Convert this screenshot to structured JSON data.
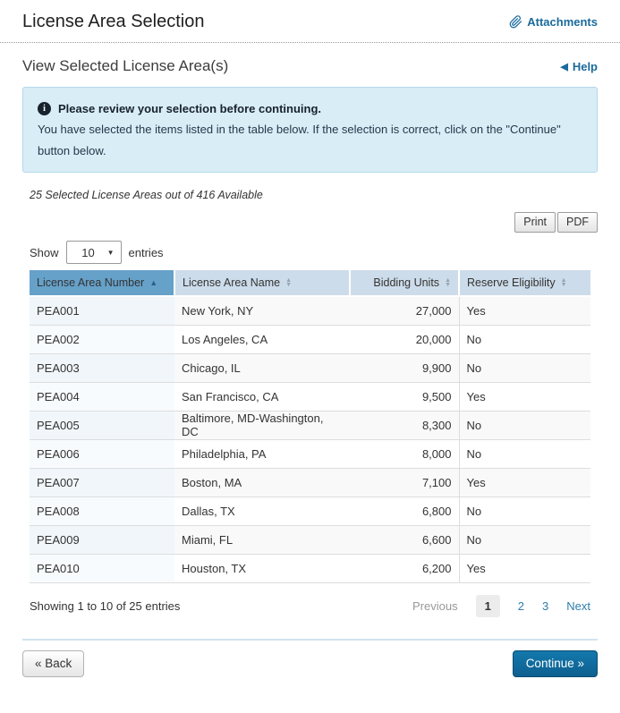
{
  "header": {
    "title": "License Area Selection",
    "attachments_label": "Attachments"
  },
  "subheader": {
    "title": "View Selected License Area(s)",
    "help_label": "Help",
    "help_icon": "◀"
  },
  "notice": {
    "title": "Please review your selection before continuing.",
    "body": "You have selected the items listed in the table below. If the selection is correct, click on the \"Continue\" button below.",
    "info_icon_glyph": "i"
  },
  "summary": "25 Selected License Areas out of 416 Available",
  "toolbar": {
    "print_label": "Print",
    "pdf_label": "PDF"
  },
  "length_control": {
    "show_label": "Show",
    "selected_value": "10",
    "entries_label": "entries",
    "caret_icon": "▼"
  },
  "table": {
    "columns": [
      "License Area Number",
      "License Area Name",
      "Bidding Units",
      "Reserve Eligibility"
    ],
    "sorted_column": "License Area Number",
    "sort_direction": "ascending",
    "sort_asc_icon": "▲",
    "sort_up_icon": "▲",
    "sort_down_icon": "▼",
    "rows": [
      {
        "number": "PEA001",
        "name": "New York, NY",
        "bidding_units": "27,000",
        "reserve_eligibility": "Yes"
      },
      {
        "number": "PEA002",
        "name": "Los Angeles, CA",
        "bidding_units": "20,000",
        "reserve_eligibility": "No"
      },
      {
        "number": "PEA003",
        "name": "Chicago, IL",
        "bidding_units": "9,900",
        "reserve_eligibility": "No"
      },
      {
        "number": "PEA004",
        "name": "San Francisco, CA",
        "bidding_units": "9,500",
        "reserve_eligibility": "Yes"
      },
      {
        "number": "PEA005",
        "name": "Baltimore, MD-Washington, DC",
        "bidding_units": "8,300",
        "reserve_eligibility": "No"
      },
      {
        "number": "PEA006",
        "name": "Philadelphia, PA",
        "bidding_units": "8,000",
        "reserve_eligibility": "No"
      },
      {
        "number": "PEA007",
        "name": "Boston, MA",
        "bidding_units": "7,100",
        "reserve_eligibility": "Yes"
      },
      {
        "number": "PEA008",
        "name": "Dallas, TX",
        "bidding_units": "6,800",
        "reserve_eligibility": "No"
      },
      {
        "number": "PEA009",
        "name": "Miami, FL",
        "bidding_units": "6,600",
        "reserve_eligibility": "No"
      },
      {
        "number": "PEA010",
        "name": "Houston, TX",
        "bidding_units": "6,200",
        "reserve_eligibility": "Yes"
      }
    ]
  },
  "table_footer": {
    "showing_text": "Showing 1 to 10 of 25 entries",
    "pagination": {
      "previous_label": "Previous",
      "pages": [
        {
          "label": "1",
          "active": true
        },
        {
          "label": "2",
          "active": false
        },
        {
          "label": "3",
          "active": false
        }
      ],
      "next_label": "Next"
    }
  },
  "actions": {
    "back_label": "« Back",
    "continue_label": "Continue »"
  },
  "colors": {
    "link_blue": "#1b6a9c",
    "sorted_header_bg": "#66a1c9",
    "header_bg": "#cddcea",
    "notice_bg": "#d9edf7",
    "notice_border": "#b3d8ec",
    "continue_button_bg": "#0f6a9d",
    "row_stripe": "#f9f9f9",
    "sorted_column_tint": "#f1f6fa"
  }
}
